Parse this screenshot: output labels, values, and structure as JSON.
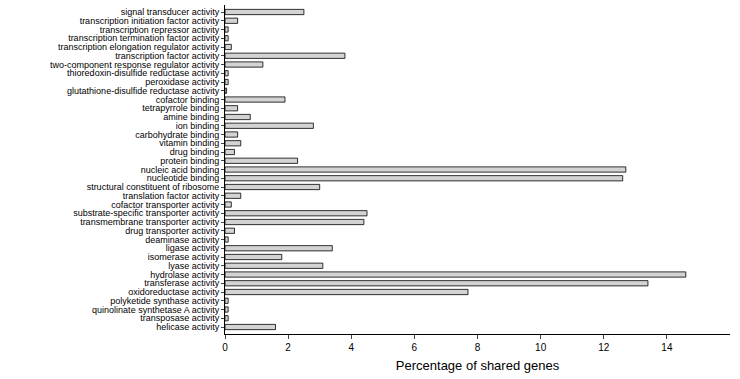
{
  "chart_data": {
    "type": "bar",
    "orientation": "horizontal",
    "x_label": "Percentage of shared genes",
    "categories": [
      "signal transducer activity",
      "transcription initiation factor activity",
      "transcription repressor activity",
      "transcription termination factor activity",
      "transcription elongation regulator activity",
      "transcription factor activity",
      "two-component response regulator activity",
      "thioredoxin-disulfide reductase activity",
      "peroxidase activity",
      "glutathione-disulfide reductase activity",
      "cofactor binding",
      "tetrapyrrole binding",
      "amine binding",
      "ion binding",
      "carbohydrate binding",
      "vitamin binding",
      "drug binding",
      "protein binding",
      "nucleic acid binding",
      "nucleotide binding",
      "structural constituent of ribosome",
      "translation factor activity",
      "cofactor transporter activity",
      "substrate-specific transporter activity",
      "transmembrane transporter activity",
      "drug transporter activity",
      "deaminase activity",
      "ligase activity",
      "isomerase activity",
      "lyase activity",
      "hydrolase activity",
      "transferase activity",
      "oxidoreductase activity",
      "polyketide synthase activity",
      "quinolinate synthetase A activity",
      "transposase activity",
      "helicase activity"
    ],
    "values": [
      2.5,
      0.4,
      0.1,
      0.1,
      0.2,
      3.8,
      1.2,
      0.1,
      0.1,
      0.05,
      1.9,
      0.4,
      0.8,
      2.8,
      0.4,
      0.5,
      0.3,
      2.3,
      12.7,
      12.6,
      3.0,
      0.5,
      0.2,
      4.5,
      4.4,
      0.3,
      0.1,
      3.4,
      1.8,
      3.1,
      14.6,
      13.4,
      7.7,
      0.1,
      0.1,
      0.1,
      1.6
    ],
    "color": "#d3d3d3",
    "xlim": [
      0,
      16
    ],
    "xticks": [
      0,
      2,
      4,
      6,
      8,
      10,
      12,
      14
    ],
    "grid": false
  }
}
